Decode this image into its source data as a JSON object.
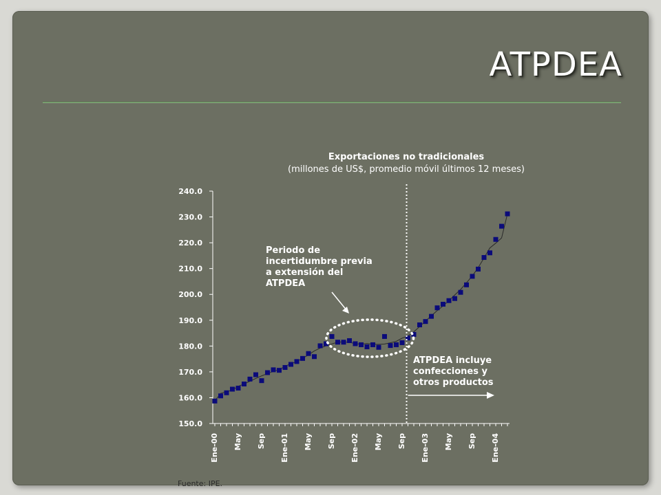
{
  "slide": {
    "title": "ATPDEA",
    "source": "Fuente: IPE."
  },
  "colors": {
    "background": "#6c6f62",
    "marker": "#0b0b7a",
    "trend": "#2a2a2a",
    "text": "#ffffff"
  },
  "chart_data": {
    "type": "scatter",
    "title": "Exportaciones no tradicionales",
    "subtitle": "(millones de US$, promedio móvil últimos 12 meses)",
    "xlabel": "",
    "ylabel": "",
    "ylim": [
      150,
      240
    ],
    "y_ticks": [
      "150.0",
      "160.0",
      "170.0",
      "180.0",
      "190.0",
      "200.0",
      "210.0",
      "220.0",
      "230.0",
      "240.0"
    ],
    "x_tick_labels": [
      "Ene-00",
      "May",
      "Sep",
      "Ene-01",
      "May",
      "Sep",
      "Ene-02",
      "May",
      "Sep",
      "Ene-03",
      "May",
      "Sep",
      "Ene-04"
    ],
    "grid": false,
    "series": [
      {
        "values": [
          158.7,
          160.7,
          161.9,
          163.3,
          163.7,
          165.3,
          167.2,
          168.9,
          166.6,
          169.7,
          170.8,
          170.6,
          171.7,
          172.9,
          174.0,
          175.2,
          177.1,
          175.9,
          180.1,
          180.9,
          183.7,
          181.5,
          181.5,
          182.1,
          180.9,
          180.5,
          179.7,
          180.5,
          179.5,
          183.7,
          180.2,
          180.5,
          181.3,
          183.1,
          184.5,
          188.2,
          189.5,
          191.5,
          194.8,
          196.2,
          197.6,
          198.4,
          200.8,
          203.7,
          207.0,
          209.8,
          214.3,
          216.1,
          221.3,
          226.4,
          231.2
        ]
      }
    ],
    "annotations": {
      "uncertainty": "Periodo de\nincertidumbre previa\na extensión del\nATPDEA",
      "atpdea": "ATPDEA incluye\nconfecciones y\notros productos"
    },
    "marker_line_index": 33,
    "highlight_range": [
      20,
      33
    ]
  }
}
